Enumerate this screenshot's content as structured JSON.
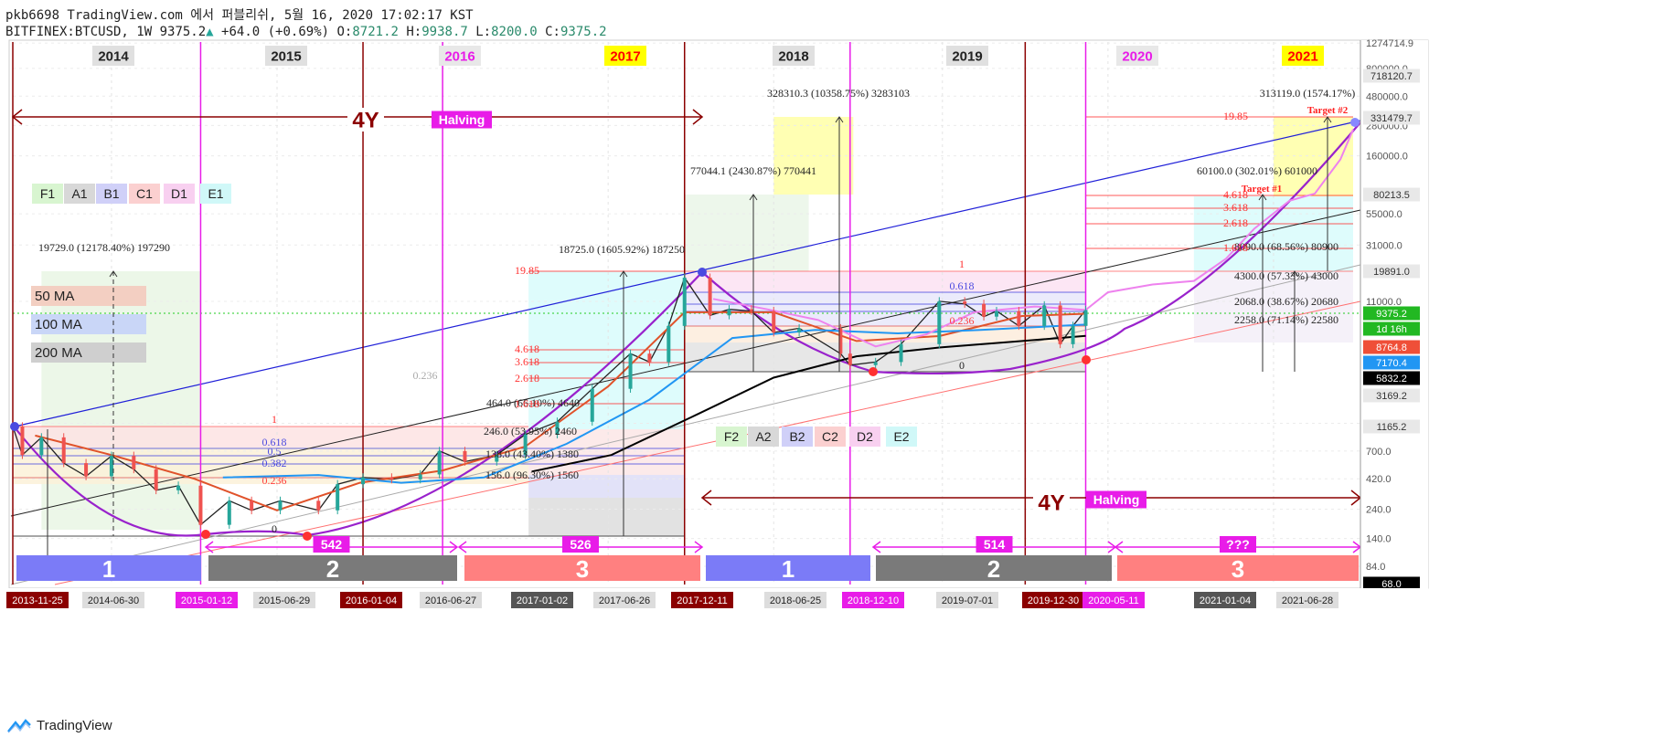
{
  "header": {
    "publisher_line": "pkb6698 TradingView.com 에서 퍼블리쉬, 5월 16, 2020 17:02:17 KST",
    "symbol": "BITFINEX:BTCUSD,",
    "interval": "1W",
    "last": "9375.2",
    "change": "+64.0 (+0.69%)",
    "o_label": "O:",
    "o_val": "8721.2",
    "h_label": "H:",
    "h_val": "9938.7",
    "l_label": "L:",
    "l_val": "8200.0",
    "c_label": "C:",
    "c_val": "9375.2"
  },
  "footer": {
    "brand": "TradingView"
  },
  "colors": {
    "magenta": "#e81ce8",
    "darkred": "#8b0000",
    "up": "#26a69a",
    "down": "#ef5350"
  },
  "chart_data": {
    "type": "line",
    "title": "",
    "xlabel": "",
    "ylabel": "",
    "y_scale": "log",
    "ylim": [
      60,
      1300000
    ],
    "x_range": [
      "2013-11-25",
      "2021-12-20"
    ],
    "grid": true,
    "series": [
      {
        "name": "",
        "color": "#222222",
        "points": [
          [
            "2013-11-25",
            1100
          ],
          [
            "2013-12-16",
            650
          ],
          [
            "2014-01-27",
            900
          ],
          [
            "2014-03-17",
            560
          ],
          [
            "2014-05-05",
            440
          ],
          [
            "2014-06-30",
            640
          ],
          [
            "2014-08-18",
            500
          ],
          [
            "2014-10-06",
            340
          ],
          [
            "2014-11-24",
            370
          ],
          [
            "2015-01-12",
            180
          ],
          [
            "2015-03-16",
            280
          ],
          [
            "2015-05-04",
            235
          ],
          [
            "2015-07-06",
            280
          ],
          [
            "2015-09-28",
            235
          ],
          [
            "2015-11-09",
            380
          ],
          [
            "2016-01-04",
            430
          ],
          [
            "2016-03-07",
            415
          ],
          [
            "2016-05-09",
            455
          ],
          [
            "2016-06-20",
            700
          ],
          [
            "2016-08-15",
            575
          ],
          [
            "2016-10-24",
            650
          ],
          [
            "2016-12-26",
            950
          ],
          [
            "2017-03-06",
            1200
          ],
          [
            "2017-05-22",
            2200
          ],
          [
            "2017-08-14",
            4200
          ],
          [
            "2017-09-25",
            3600
          ],
          [
            "2017-11-06",
            7000
          ],
          [
            "2017-12-11",
            17000
          ],
          [
            "2018-02-05",
            8500
          ],
          [
            "2018-03-19",
            9500
          ],
          [
            "2018-05-07",
            9200
          ],
          [
            "2018-06-25",
            6200
          ],
          [
            "2018-08-20",
            6700
          ],
          [
            "2018-11-19",
            4200
          ],
          [
            "2018-12-10",
            3400
          ],
          [
            "2019-02-04",
            3600
          ],
          [
            "2019-04-01",
            5000
          ],
          [
            "2019-06-24",
            11000
          ],
          [
            "2019-08-19",
            10500
          ],
          [
            "2019-09-30",
            8300
          ],
          [
            "2019-10-28",
            9200
          ],
          [
            "2019-12-16",
            7000
          ],
          [
            "2020-02-10",
            10200
          ],
          [
            "2020-03-16",
            5000
          ],
          [
            "2020-04-13",
            7000
          ],
          [
            "2020-05-11",
            9375
          ]
        ]
      },
      {
        "name": "50 MA",
        "color": "#e0522a",
        "points": [
          [
            "2014-01-13",
            930
          ],
          [
            "2014-06-30",
            650
          ],
          [
            "2014-12-29",
            420
          ],
          [
            "2015-06-29",
            235
          ],
          [
            "2015-12-28",
            390
          ],
          [
            "2016-06-27",
            490
          ],
          [
            "2016-12-26",
            760
          ],
          [
            "2017-06-26",
            2300
          ],
          [
            "2017-12-11",
            9000
          ],
          [
            "2018-06-25",
            9000
          ],
          [
            "2018-12-24",
            5300
          ],
          [
            "2019-06-24",
            5800
          ],
          [
            "2019-12-23",
            8400
          ],
          [
            "2020-05-11",
            8764
          ]
        ]
      },
      {
        "name": "100 MA",
        "color": "#2196f3",
        "points": [
          [
            "2015-03-02",
            430
          ],
          [
            "2015-09-28",
            450
          ],
          [
            "2016-03-28",
            390
          ],
          [
            "2016-09-26",
            430
          ],
          [
            "2017-03-27",
            800
          ],
          [
            "2017-09-25",
            1800
          ],
          [
            "2018-03-26",
            5600
          ],
          [
            "2018-09-24",
            6500
          ],
          [
            "2019-03-25",
            6100
          ],
          [
            "2019-09-23",
            6500
          ],
          [
            "2020-05-11",
            7170
          ]
        ]
      },
      {
        "name": "200 MA",
        "color": "#000000",
        "points": [
          [
            "2017-01-09",
            480
          ],
          [
            "2017-07-03",
            650
          ],
          [
            "2017-12-25",
            1300
          ],
          [
            "2018-06-25",
            2700
          ],
          [
            "2018-12-24",
            4000
          ],
          [
            "2019-06-24",
            4700
          ],
          [
            "2019-12-23",
            5300
          ],
          [
            "2020-05-11",
            5832
          ]
        ]
      },
      {
        "name": "",
        "color": "#ee82ee",
        "points": [
          [
            "2018-02-12",
            11500
          ],
          [
            "2018-06-11",
            9500
          ],
          [
            "2018-10-01",
            7800
          ],
          [
            "2019-02-04",
            4800
          ],
          [
            "2019-05-27",
            6000
          ],
          [
            "2019-09-09",
            9000
          ],
          [
            "2020-01-20",
            10000
          ],
          [
            "2020-05-11",
            9375
          ],
          [
            "2020-06-29",
            13000
          ],
          [
            "2020-10-05",
            15000
          ],
          [
            "2021-01-04",
            16000
          ],
          [
            "2021-03-15",
            24000
          ],
          [
            "2021-05-17",
            42000
          ],
          [
            "2021-08-02",
            70000
          ],
          [
            "2021-09-27",
            80000
          ],
          [
            "2021-11-22",
            150000
          ],
          [
            "2021-12-20",
            260000
          ]
        ]
      }
    ],
    "y_axis_labels": [
      "1274714.9",
      "800000.0",
      "480000.0",
      "280000.0",
      "160000.0",
      "55000.0",
      "31000.0",
      "11000.0",
      "1165.2",
      "700.0",
      "420.0",
      "240.0",
      "140.0",
      "84.0"
    ],
    "price_tags": [
      {
        "text": "718120.7",
        "bg": "#e8e8e8",
        "fg": "#333"
      },
      {
        "text": "331479.7",
        "bg": "#e8e8e8",
        "fg": "#333"
      },
      {
        "text": "80213.5",
        "bg": "#e8e8e8",
        "fg": "#333"
      },
      {
        "text": "19891.0",
        "bg": "#e8e8e8",
        "fg": "#333"
      },
      {
        "text": "9375.2",
        "bg": "#22b822",
        "fg": "#fff"
      },
      {
        "text": "1d 16h",
        "bg": "#22b822",
        "fg": "#fff"
      },
      {
        "text": "8764.8",
        "bg": "#ef4f38",
        "fg": "#fff"
      },
      {
        "text": "7170.4",
        "bg": "#2196f3",
        "fg": "#fff"
      },
      {
        "text": "5832.2",
        "bg": "#000",
        "fg": "#fff"
      },
      {
        "text": "3169.2",
        "bg": "#e8e8e8",
        "fg": "#333"
      },
      {
        "text": "1165.2",
        "bg": "#e8e8e8",
        "fg": "#333"
      },
      {
        "text": "68.0",
        "bg": "#000",
        "fg": "#fff"
      }
    ],
    "x_axis_labels": [
      {
        "text": "2013-11-25",
        "bg": "#8b0000",
        "fg": "#fff"
      },
      {
        "text": "2014-06-30",
        "bg": "#dddddd",
        "fg": "#222"
      },
      {
        "text": "2015-01-12",
        "bg": "#e81ce8",
        "fg": "#fff"
      },
      {
        "text": "2015-06-29",
        "bg": "#dddddd",
        "fg": "#222"
      },
      {
        "text": "2016-01-04",
        "bg": "#8b0000",
        "fg": "#fff"
      },
      {
        "text": "2016-06-27",
        "bg": "#dddddd",
        "fg": "#222"
      },
      {
        "text": "2017-01-02",
        "bg": "#555555",
        "fg": "#fff"
      },
      {
        "text": "2017-06-26",
        "bg": "#dddddd",
        "fg": "#222"
      },
      {
        "text": "2017-12-11",
        "bg": "#8b0000",
        "fg": "#fff"
      },
      {
        "text": "2018-06-25",
        "bg": "#dddddd",
        "fg": "#222"
      },
      {
        "text": "2018-12-10",
        "bg": "#e81ce8",
        "fg": "#fff"
      },
      {
        "text": "2019-07-01",
        "bg": "#dddddd",
        "fg": "#222"
      },
      {
        "text": "2019-12-30",
        "bg": "#8b0000",
        "fg": "#fff"
      },
      {
        "text": "2020-05-11",
        "bg": "#e81ce8",
        "fg": "#fff"
      },
      {
        "text": "2021-01-04",
        "bg": "#555555",
        "fg": "#fff"
      },
      {
        "text": "2021-06-28",
        "bg": "#dddddd",
        "fg": "#222"
      }
    ],
    "years": [
      {
        "text": "2014",
        "bg": "#e0e0e0",
        "fg": "#222"
      },
      {
        "text": "2015",
        "bg": "#e0e0e0",
        "fg": "#222"
      },
      {
        "text": "2016",
        "bg": "#e8e8e8",
        "fg": "#e81ce8"
      },
      {
        "text": "2017",
        "bg": "#ffff00",
        "fg": "#ff0000"
      },
      {
        "text": "2018",
        "bg": "#e0e0e0",
        "fg": "#222"
      },
      {
        "text": "2019",
        "bg": "#e0e0e0",
        "fg": "#222"
      },
      {
        "text": "2020",
        "bg": "#e8e8e8",
        "fg": "#e81ce8"
      },
      {
        "text": "2021",
        "bg": "#ffff00",
        "fg": "#ff0000"
      }
    ],
    "legend_boxes_1": [
      "F1",
      "A1",
      "B1",
      "C1",
      "D1",
      "E1"
    ],
    "legend_boxes_2": [
      "F2",
      "A2",
      "B2",
      "C2",
      "D2",
      "E2"
    ],
    "ma_legend": [
      "50 MA",
      "100 MA",
      "200 MA"
    ],
    "cycle_label": "4Y",
    "halving_label": "Halving",
    "phase_numbers": [
      "1",
      "2",
      "3",
      "1",
      "2",
      "3"
    ],
    "day_counts": [
      "542",
      "526",
      "514",
      "???"
    ],
    "measures": [
      "19729.0 (12178.40%) 197290",
      "18725.0 (1605.92%) 187250",
      "77044.1 (2430.87%) 770441",
      "328310.3 (10358.75%) 3283103",
      "313119.0 (1574.17%)",
      "60100.0 (302.01%) 601000",
      "8090.0 (68.56%) 80900",
      "4300.0 (57.33%) 43000",
      "2068.0 (38.67%) 20680",
      "2258.0 (71.14%) 22580",
      "464.0 (66.10%) 4640",
      "246.0 (53.95%) 2460",
      "138.0 (43.40%) 1380",
      "156.0 (96.30%) 1560"
    ],
    "fib_labels": [
      "19.85",
      "4.618",
      "3.618",
      "2.618",
      "1.618",
      "1",
      "0.618",
      "0.5",
      "0.382",
      "0.236",
      "0",
      "0.236",
      "0"
    ],
    "targets": [
      "Target #2",
      "Target #1"
    ]
  }
}
